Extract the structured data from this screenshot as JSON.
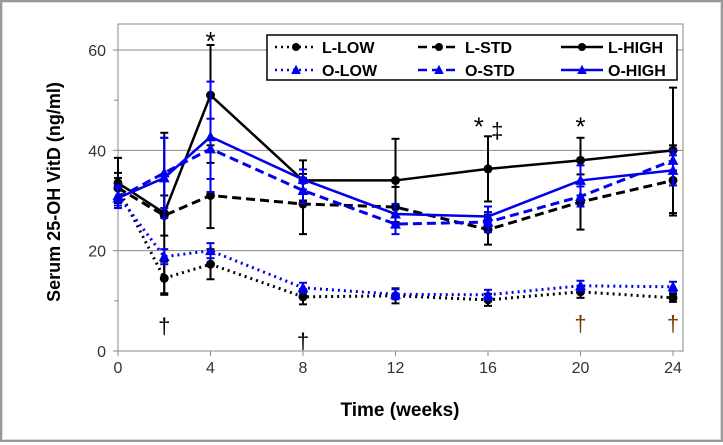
{
  "chart_data": {
    "type": "line",
    "xlabel": "Time (weeks)",
    "ylabel": "Serum 25-OH VitD (ng/ml)",
    "x": [
      0,
      2,
      4,
      8,
      12,
      16,
      20,
      24
    ],
    "xticks": [
      "0",
      "4",
      "8",
      "12",
      "16",
      "20",
      "24"
    ],
    "xtick_values": [
      0,
      4,
      8,
      12,
      16,
      20,
      24
    ],
    "yticks": [
      "0",
      "20",
      "40",
      "60"
    ],
    "ytick_values": [
      0,
      20,
      40,
      60
    ],
    "xlim": [
      0,
      24
    ],
    "ylim": [
      0,
      60
    ],
    "grid": true,
    "legend_position": "top-right",
    "series": [
      {
        "name": "L-LOW",
        "color": "#000000",
        "dash": "dotted",
        "marker": "circle",
        "values": [
          32.5,
          14.5,
          17.3,
          10.8,
          11,
          10.2,
          11.8,
          10.6
        ],
        "err": [
          2,
          3.3,
          3,
          1.5,
          1.5,
          1.2,
          1.2,
          0.8
        ]
      },
      {
        "name": "L-STD",
        "color": "#000000",
        "dash": "dashed",
        "marker": "circle",
        "values": [
          32.5,
          27,
          31,
          29.3,
          28.7,
          24.2,
          29.7,
          34
        ],
        "err": [
          3,
          4,
          6.5,
          6,
          4,
          3,
          5.5,
          7
        ]
      },
      {
        "name": "L-HIGH",
        "color": "#000000",
        "dash": "solid",
        "marker": "circle",
        "values": [
          33.5,
          27.5,
          51,
          34,
          34,
          36.3,
          38,
          40
        ],
        "err": [
          5,
          16,
          10,
          4,
          8.3,
          6.5,
          4.5,
          12.5
        ]
      },
      {
        "name": "O-LOW",
        "color": "#0000ee",
        "dash": "dotted",
        "marker": "triangle",
        "values": [
          31,
          18.8,
          20,
          12.6,
          11.3,
          11.2,
          13,
          12.8
        ],
        "err": [
          2,
          1.5,
          1.5,
          1,
          1,
          1,
          1,
          1
        ]
      },
      {
        "name": "O-STD",
        "color": "#0000ee",
        "dash": "dashed",
        "marker": "triangle",
        "values": [
          30.5,
          35.5,
          40.3,
          32,
          25.3,
          25.7,
          30.8,
          38
        ],
        "err": [
          2,
          7,
          6,
          2.5,
          2,
          2,
          2,
          2
        ]
      },
      {
        "name": "O-HIGH",
        "color": "#0000ee",
        "dash": "solid",
        "marker": "triangle",
        "values": [
          30.5,
          34.5,
          42.7,
          34.2,
          27.3,
          26.8,
          34,
          36
        ],
        "err": [
          2,
          8,
          11,
          2,
          2,
          2,
          3,
          3
        ]
      }
    ],
    "annotations": [
      {
        "text": "*",
        "x": 4,
        "y": 62,
        "color": "#000000"
      },
      {
        "text": "†",
        "x": 2,
        "y": 5.5,
        "color": "#000000"
      },
      {
        "text": "†",
        "x": 8,
        "y": 2.5,
        "color": "#000000"
      },
      {
        "text": "*",
        "x": 15.6,
        "y": 45,
        "color": "#000000"
      },
      {
        "text": "‡",
        "x": 16.4,
        "y": 44.5,
        "color": "#000000"
      },
      {
        "text": "*",
        "x": 20,
        "y": 45,
        "color": "#000000"
      },
      {
        "text": "†",
        "x": 20,
        "y": 6,
        "color": "#7a3a00"
      },
      {
        "text": "†",
        "x": 24,
        "y": 6,
        "color": "#7a3a00"
      }
    ]
  }
}
